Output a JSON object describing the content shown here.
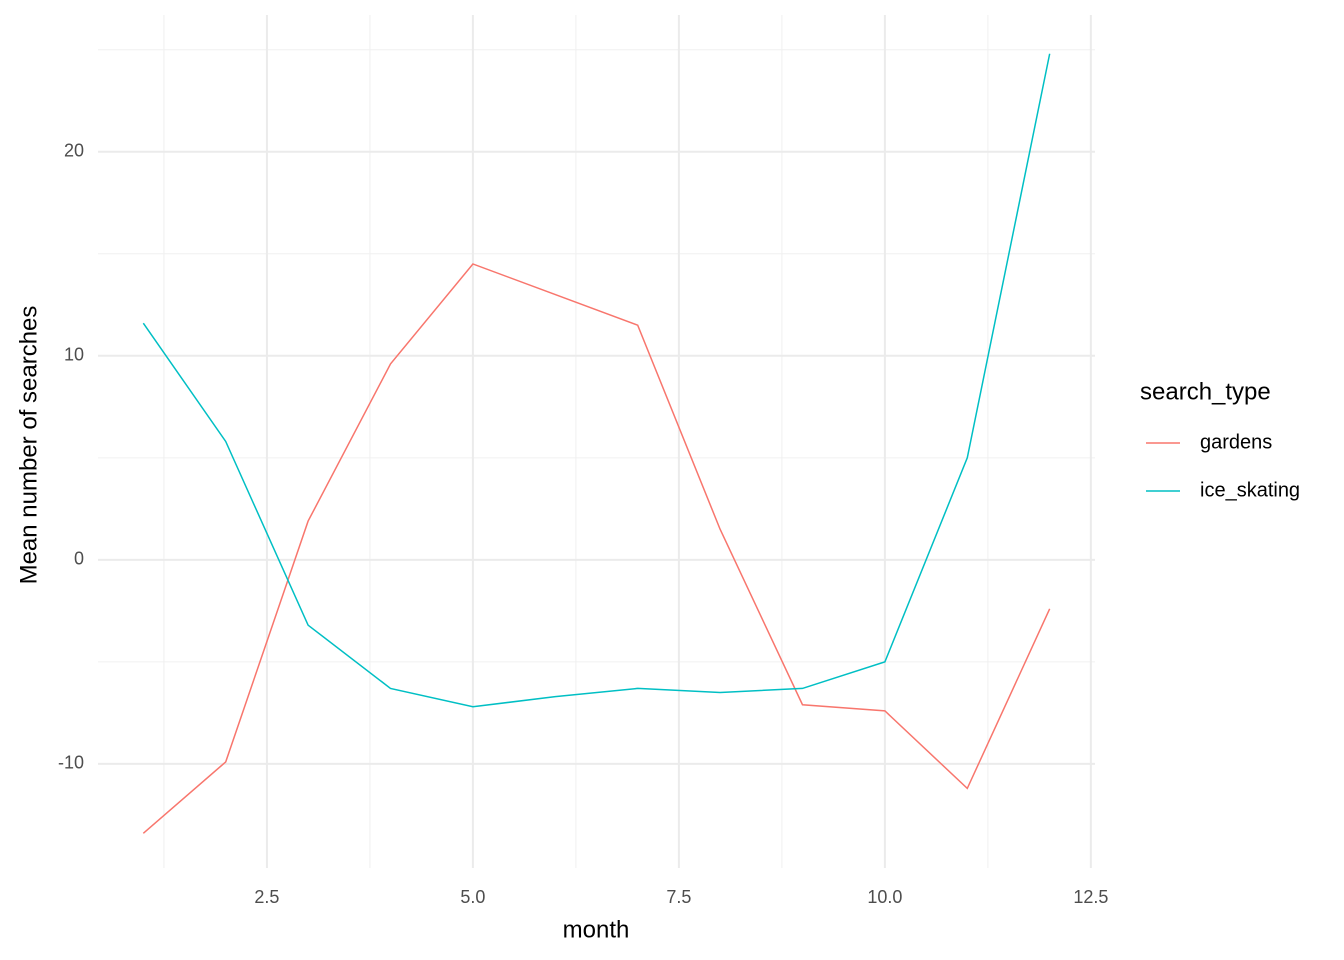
{
  "chart_data": {
    "type": "line",
    "x_label": "month",
    "y_label": "Mean number of searches",
    "x": [
      1,
      2,
      3,
      4,
      5,
      6,
      7,
      8,
      9,
      10,
      11,
      12
    ],
    "series": [
      {
        "name": "gardens",
        "color": "#F8766D",
        "values": [
          -13.4,
          -9.9,
          1.9,
          9.6,
          14.5,
          13.0,
          11.5,
          1.5,
          -7.1,
          -7.4,
          -11.2,
          -2.4
        ]
      },
      {
        "name": "ice_skating",
        "color": "#00BFC4",
        "values": [
          11.6,
          5.8,
          -3.2,
          -6.3,
          -7.2,
          -6.7,
          -6.3,
          -6.5,
          -6.3,
          -5.0,
          5.0,
          24.8
        ]
      }
    ],
    "xlim": [
      0.45,
      12.55
    ],
    "ylim": [
      -15.1,
      26.7
    ],
    "xticks": [
      {
        "value": 2.5,
        "label": "2.5"
      },
      {
        "value": 5,
        "label": "5.0"
      },
      {
        "value": 7.5,
        "label": "7.5"
      },
      {
        "value": 10,
        "label": "10.0"
      },
      {
        "value": 12.5,
        "label": "12.5"
      }
    ],
    "yticks": [
      -10,
      0,
      10,
      20
    ],
    "minor_xticks": [
      1.25,
      3.75,
      6.25,
      8.75,
      11.25
    ],
    "minor_yticks": [
      -5,
      5,
      15,
      25
    ],
    "grid": true,
    "legend_title": "search_type",
    "legend_position": "right"
  }
}
